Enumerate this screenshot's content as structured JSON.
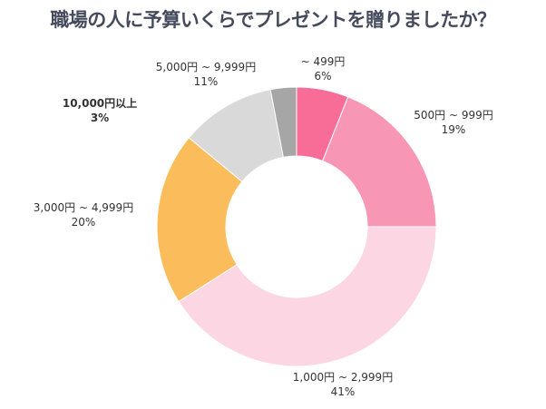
{
  "chart_data": {
    "type": "pie",
    "donut": true,
    "title": "職場の人に予算いくらでプレゼントを贈りましたか？",
    "categories": [
      "~ 499円",
      "500円 ~ 999円",
      "1,000円 ~ 2,999円",
      "3,000円 ~ 4,999円",
      "5,000円 ~ 9,999円",
      "10,000円以上"
    ],
    "values": [
      6,
      19,
      41,
      20,
      11,
      3
    ],
    "value_labels": [
      "6%",
      "19%",
      "41%",
      "20%",
      "11%",
      "3%"
    ],
    "colors": [
      "#f76d98",
      "#f797b5",
      "#fcd6e2",
      "#fbbd5b",
      "#d9d9d9",
      "#a6a6a6"
    ],
    "start": "top",
    "direction": "clockwise"
  }
}
